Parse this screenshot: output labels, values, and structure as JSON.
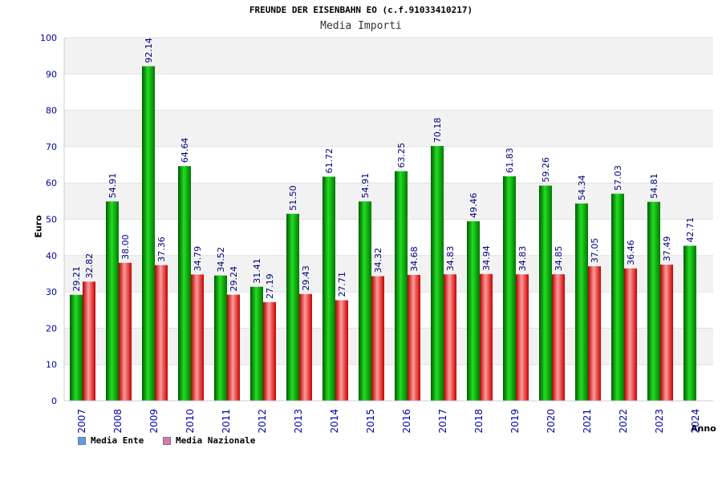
{
  "chart_data": {
    "type": "bar",
    "title": "FREUNDE DER EISENBAHN EO (c.f.91033410217)",
    "subtitle": "Media Importi",
    "ylabel": "Euro",
    "xlabel": "Anno",
    "ylim": [
      0,
      100
    ],
    "yticks": [
      0,
      10,
      20,
      30,
      40,
      50,
      60,
      70,
      80,
      90,
      100
    ],
    "grid": true,
    "legend_position": "bottom-left",
    "categories": [
      "2007",
      "2008",
      "2009",
      "2010",
      "2011",
      "2012",
      "2013",
      "2014",
      "2015",
      "2016",
      "2017",
      "2018",
      "2019",
      "2020",
      "2021",
      "2022",
      "2023",
      "2024"
    ],
    "series": [
      {
        "name": "Media Ente",
        "color": "#00b400",
        "values": [
          29.21,
          54.91,
          92.14,
          64.64,
          34.52,
          31.41,
          51.5,
          61.72,
          54.91,
          63.25,
          70.18,
          49.46,
          61.83,
          59.26,
          54.34,
          57.03,
          54.81,
          42.71
        ],
        "labels": [
          "29.21",
          "54.91",
          "92.14",
          "64.64",
          "34.52",
          "31.41",
          "51.50",
          "61.72",
          "54.91",
          "63.25",
          "70.18",
          "49.46",
          "61.83",
          "59.26",
          "54.34",
          "57.03",
          "54.81",
          "42.71"
        ]
      },
      {
        "name": "Media Nazionale",
        "color": "#e01010",
        "values": [
          32.82,
          38.0,
          37.36,
          34.79,
          29.24,
          27.19,
          29.43,
          27.71,
          34.32,
          34.68,
          34.83,
          34.94,
          34.83,
          34.85,
          37.05,
          36.46,
          37.49,
          null
        ],
        "labels": [
          "32.82",
          "38.00",
          "37.36",
          "34.79",
          "29.24",
          "27.19",
          "29.43",
          "27.71",
          "34.32",
          "34.68",
          "34.83",
          "34.94",
          "34.83",
          "34.85",
          "37.05",
          "36.46",
          "37.49",
          null
        ]
      }
    ]
  },
  "legend": {
    "items": [
      {
        "label": "Media Ente",
        "color": "#5a9ee8"
      },
      {
        "label": "Media Nazionale",
        "color": "#dd77aa"
      }
    ]
  }
}
